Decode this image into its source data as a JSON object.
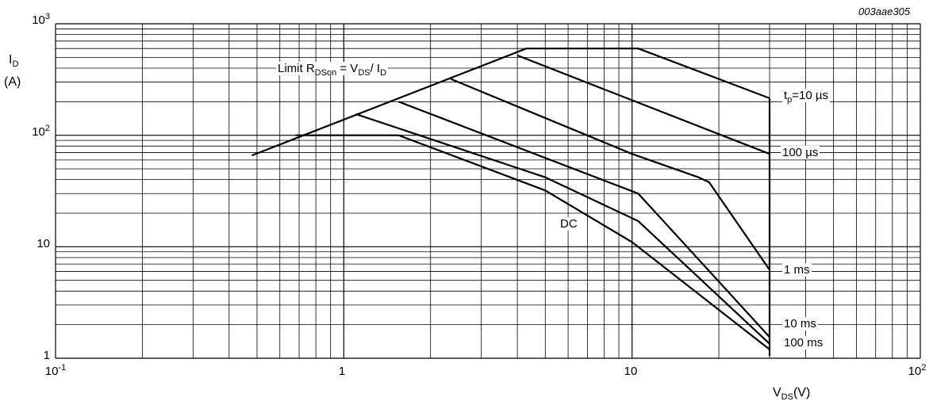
{
  "chart_data": {
    "type": "line",
    "figure_code": "003aae305",
    "x_scale": "log",
    "y_scale": "log",
    "xlim": [
      0.1,
      100
    ],
    "ylim": [
      1,
      1000
    ],
    "grid": true,
    "y_axis_label": {
      "main": "I",
      "sub": "D",
      "unit": "(A)"
    },
    "x_axis_label": {
      "main": "V",
      "sub": "DS",
      "unit": "(V)"
    },
    "x_ticks": [
      {
        "value": 0.1,
        "base": "10",
        "exp": "-1"
      },
      {
        "value": 1,
        "base": "1",
        "exp": ""
      },
      {
        "value": 10,
        "base": "10",
        "exp": ""
      },
      {
        "value": 100,
        "base": "10",
        "exp": "2"
      }
    ],
    "y_ticks": [
      {
        "value": 1,
        "base": "1",
        "exp": ""
      },
      {
        "value": 10,
        "base": "10",
        "exp": ""
      },
      {
        "value": 100,
        "base": "10",
        "exp": "2"
      },
      {
        "value": 1000,
        "base": "10",
        "exp": "3"
      }
    ],
    "limit_label": {
      "prefix": "Limit R",
      "sub1": "DSon",
      "mid": " = V",
      "sub2": "DS",
      "slash": "/ I",
      "sub3": "D"
    },
    "series": [
      {
        "name": "Limit RDSon",
        "x": [
          0.48,
          4.3
        ],
        "y": [
          66,
          600
        ]
      },
      {
        "name": "tp = 10 µs",
        "x": [
          4.3,
          10.5,
          30
        ],
        "y": [
          600,
          600,
          215
        ]
      },
      {
        "name": "100 µs",
        "x": [
          4.0,
          30
        ],
        "y": [
          520,
          68
        ]
      },
      {
        "name": "1 ms",
        "x": [
          2.35,
          10,
          17,
          18.5,
          30
        ],
        "y": [
          320,
          68,
          42,
          38,
          6.2
        ]
      },
      {
        "name": "10 ms",
        "x": [
          1.55,
          10.5,
          30
        ],
        "y": [
          200,
          30,
          1.55
        ]
      },
      {
        "name": "100 ms",
        "x": [
          1.1,
          5,
          10.5,
          30
        ],
        "y": [
          155,
          42,
          17,
          1.35
        ]
      },
      {
        "name": "DC",
        "x": [
          0.68,
          1.55,
          5,
          10,
          30
        ],
        "y": [
          100,
          100,
          32,
          11,
          1.2
        ]
      },
      {
        "name": "Vertical limit",
        "x": [
          30,
          30
        ],
        "y": [
          215,
          1.05
        ]
      }
    ],
    "curve_labels": {
      "tp": {
        "t": "t",
        "sub": "p",
        "rest": "=10 µs"
      },
      "us100": "100 µs",
      "ms1": "1 ms",
      "ms10": "10 ms",
      "ms100": "100 ms",
      "dc": "DC"
    }
  }
}
